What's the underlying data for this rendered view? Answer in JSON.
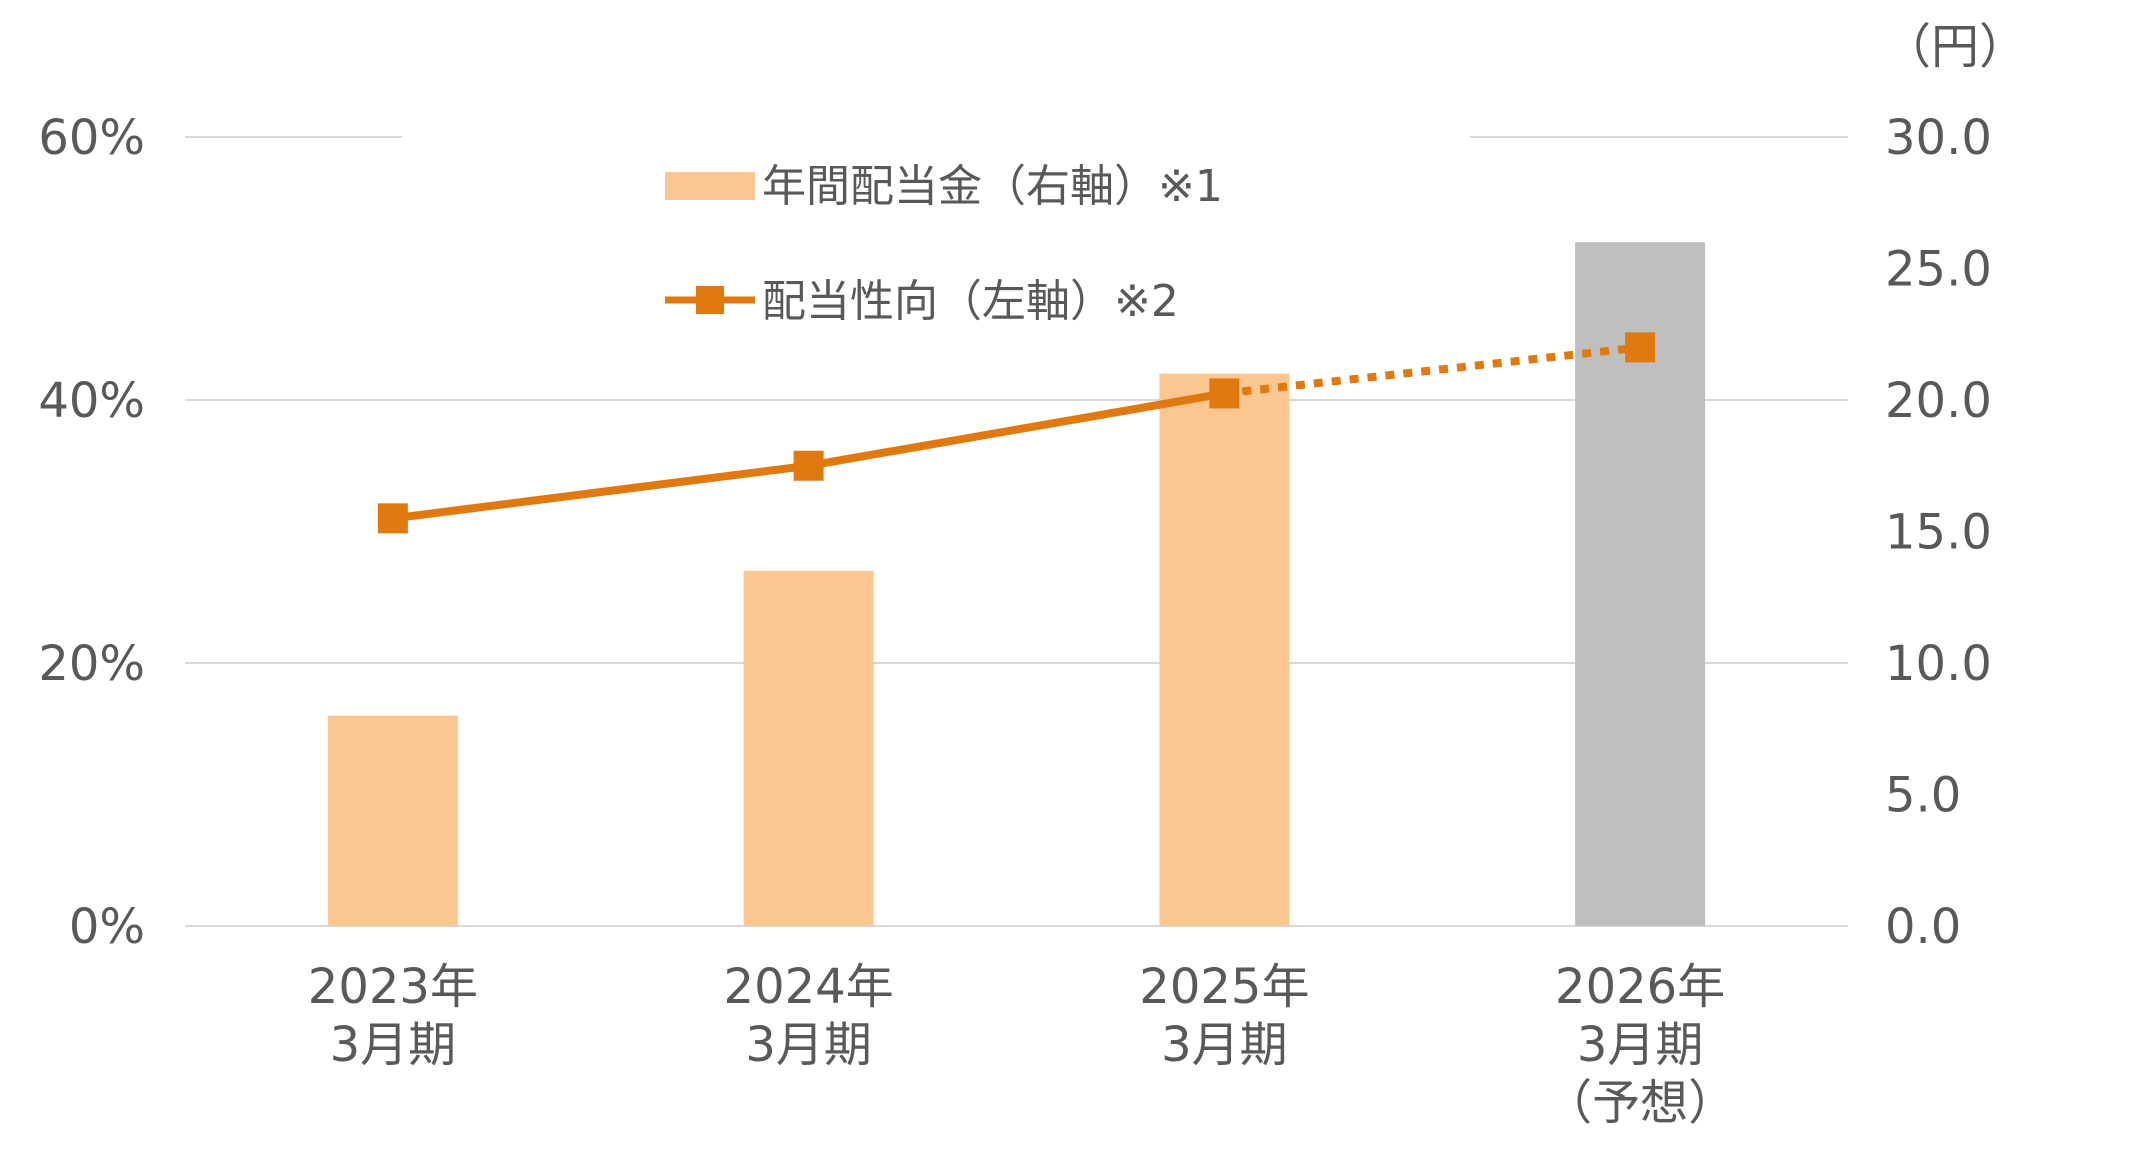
{
  "chart_data": {
    "type": "bar",
    "categories": [
      [
        "2023年",
        "3月期"
      ],
      [
        "2024年",
        "3月期"
      ],
      [
        "2025年",
        "3月期"
      ],
      [
        "2026年",
        "3月期",
        "（予想）"
      ]
    ],
    "series": [
      {
        "name": "年間配当金（右軸）※1",
        "type": "bar",
        "axis": "right",
        "values": [
          8.0,
          13.5,
          21.0,
          26.0
        ],
        "colors": [
          "#fbc68f",
          "#fbc68f",
          "#fbc68f",
          "#bfbfbf"
        ]
      },
      {
        "name": "配当性向（左軸）※2",
        "type": "line",
        "axis": "left",
        "values": [
          31,
          35,
          40.5,
          44
        ],
        "color": "#e07a10",
        "dotted_from_index": 2
      }
    ],
    "y_left": {
      "ylim": [
        0,
        60
      ],
      "ticks": [
        "0%",
        "20%",
        "40%",
        "60%"
      ]
    },
    "y_right": {
      "ylim": [
        0,
        30
      ],
      "unit": "（円）",
      "ticks": [
        "0.0",
        "5.0",
        "10.0",
        "15.0",
        "20.0",
        "25.0",
        "30.0"
      ]
    },
    "grid": true,
    "legend_position": "top-center"
  }
}
